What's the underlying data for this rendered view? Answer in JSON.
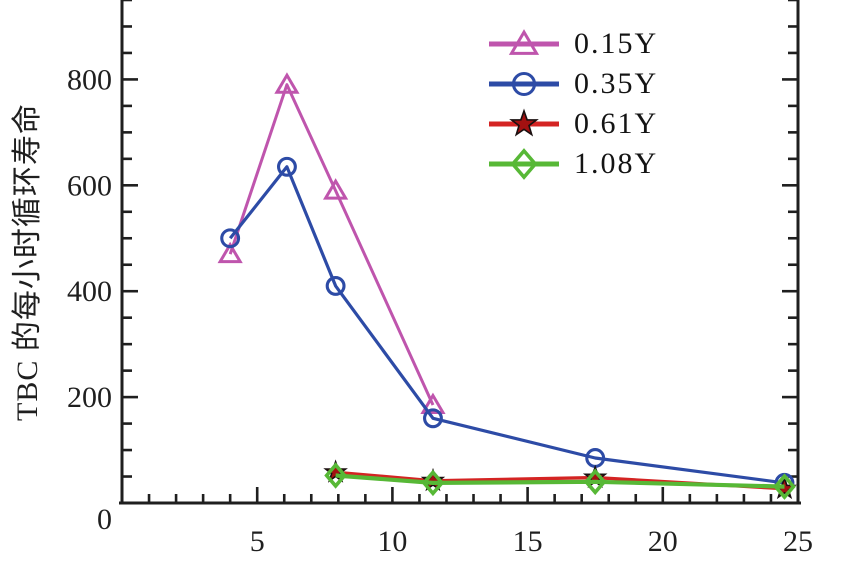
{
  "figure": {
    "background": "#ffffff",
    "axis_color": "#1f1f1f",
    "origin_label": "0"
  },
  "chart_data": {
    "type": "line",
    "title": "",
    "xlabel": "",
    "ylabel": "TBC 的每小时循环寿命",
    "xlim": [
      0,
      25
    ],
    "ylim": [
      0,
      950
    ],
    "x_major_ticks": [
      0,
      5,
      10,
      15,
      20,
      25
    ],
    "x_minor_step": 1,
    "y_major_ticks": [
      0,
      200,
      400,
      600,
      800
    ],
    "y_minor_step": 50,
    "grid": false,
    "legend_position": "inside-top-right",
    "series": [
      {
        "name": "0.15Y",
        "color": "#bf55ad",
        "marker": "triangle-open",
        "points": [
          [
            4.0,
            470
          ],
          [
            6.1,
            790
          ],
          [
            7.9,
            590
          ],
          [
            11.5,
            185
          ]
        ]
      },
      {
        "name": "0.35Y",
        "color": "#2d4ba6",
        "marker": "circle-open",
        "points": [
          [
            4.0,
            500
          ],
          [
            6.1,
            635
          ],
          [
            7.9,
            410
          ],
          [
            11.5,
            160
          ],
          [
            17.5,
            85
          ],
          [
            24.5,
            38
          ]
        ]
      },
      {
        "name": "0.61Y",
        "color": "#d42423",
        "marker": "star-filled",
        "marker_fill": "#a31111",
        "marker_outline": "#1a1010",
        "points": [
          [
            7.9,
            58
          ],
          [
            11.5,
            42
          ],
          [
            17.5,
            48
          ],
          [
            24.5,
            27
          ]
        ]
      },
      {
        "name": "1.08Y",
        "color": "#57b836",
        "marker": "diamond-open",
        "points": [
          [
            7.9,
            52
          ],
          [
            11.5,
            38
          ],
          [
            17.5,
            40
          ],
          [
            24.5,
            31
          ]
        ]
      }
    ]
  }
}
